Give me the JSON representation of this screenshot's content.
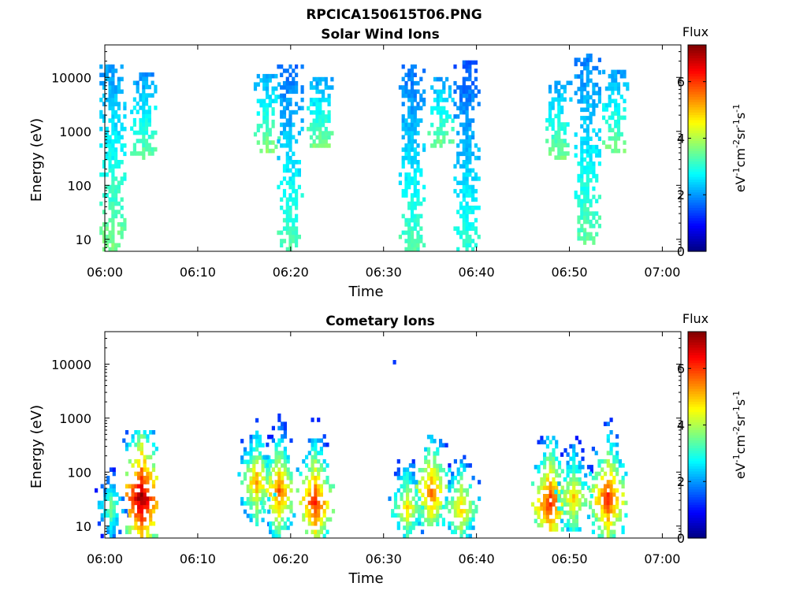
{
  "figure_title": "RPCICA150615T06.PNG",
  "colors": {
    "colormap": "jet",
    "colormap_stops": [
      "#00007f",
      "#0000ff",
      "#007fff",
      "#00ffff",
      "#7fff7f",
      "#ffff00",
      "#ff7f00",
      "#ff0000",
      "#7f0000"
    ]
  },
  "chart_data": [
    {
      "type": "heatmap",
      "title": "Solar Wind Ions",
      "xlabel": "Time",
      "ylabel": "Energy (eV)",
      "y_scale": "log",
      "ylim": [
        6,
        40000
      ],
      "xlim": [
        "06:00",
        "07:02"
      ],
      "x_ticks": [
        "06:00",
        "06:10",
        "06:20",
        "06:30",
        "06:40",
        "06:50",
        "07:00"
      ],
      "y_ticks": [
        "10",
        "100",
        "1000",
        "10000"
      ],
      "colorbar": {
        "label": "Flux",
        "units": "eV-1cm-2sr-1s-1",
        "range": [
          0,
          7.3
        ],
        "ticks": [
          "0",
          "2",
          "4",
          "6"
        ]
      },
      "bursts": [
        {
          "t": 0.7,
          "e_low": 6,
          "e_high": 15000,
          "flux": 2.0
        },
        {
          "t": 4.0,
          "e_low": 300,
          "e_high": 12000,
          "flux": 1.9
        },
        {
          "t": 17.3,
          "e_low": 400,
          "e_high": 10000,
          "flux": 2.1
        },
        {
          "t": 19.8,
          "e_low": 6,
          "e_high": 15000,
          "flux": 1.7
        },
        {
          "t": 23.0,
          "e_low": 500,
          "e_high": 10000,
          "flux": 2.0
        },
        {
          "t": 32.9,
          "e_low": 6,
          "e_high": 15000,
          "flux": 1.7
        },
        {
          "t": 36.0,
          "e_low": 500,
          "e_high": 10000,
          "flux": 2.0
        },
        {
          "t": 38.8,
          "e_low": 6,
          "e_high": 18000,
          "flux": 1.5
        },
        {
          "t": 48.7,
          "e_low": 300,
          "e_high": 8000,
          "flux": 2.0
        },
        {
          "t": 51.8,
          "e_low": 8,
          "e_high": 25000,
          "flux": 1.8
        },
        {
          "t": 54.8,
          "e_low": 400,
          "e_high": 12000,
          "flux": 2.0
        }
      ]
    },
    {
      "type": "heatmap",
      "title": "Cometary Ions",
      "xlabel": "Time",
      "ylabel": "Energy (eV)",
      "y_scale": "log",
      "ylim": [
        6,
        40000
      ],
      "xlim": [
        "06:00",
        "07:02"
      ],
      "x_ticks": [
        "06:00",
        "06:10",
        "06:20",
        "06:30",
        "06:40",
        "06:50",
        "07:00"
      ],
      "y_ticks": [
        "10",
        "100",
        "1000",
        "10000"
      ],
      "colorbar": {
        "label": "Flux",
        "units": "eV-1cm-2sr-1s-1",
        "range": [
          0,
          7.3
        ],
        "ticks": [
          "0",
          "2",
          "4",
          "6"
        ]
      },
      "bursts": [
        {
          "t": 0.5,
          "e_low": 6,
          "e_high": 400,
          "peak_e": 20,
          "peak_flux": 3.8
        },
        {
          "t": 3.8,
          "e_low": 6,
          "e_high": 600,
          "peak_e": 30,
          "peak_flux": 7.2
        },
        {
          "t": 16.2,
          "e_low": 10,
          "e_high": 900,
          "peak_e": 60,
          "peak_flux": 5.3
        },
        {
          "t": 18.6,
          "e_low": 6,
          "e_high": 1300,
          "peak_e": 40,
          "peak_flux": 5.8
        },
        {
          "t": 22.5,
          "e_low": 6,
          "e_high": 1200,
          "peak_e": 25,
          "peak_flux": 6.2
        },
        {
          "t": 31.0,
          "e_low": 10000,
          "e_high": 11000,
          "peak_e": 10500,
          "peak_flux": 1.5
        },
        {
          "t": 32.4,
          "e_low": 6,
          "e_high": 200,
          "peak_e": 20,
          "peak_flux": 4.8
        },
        {
          "t": 35.0,
          "e_low": 10,
          "e_high": 550,
          "peak_e": 40,
          "peak_flux": 5.8
        },
        {
          "t": 38.2,
          "e_low": 6,
          "e_high": 200,
          "peak_e": 20,
          "peak_flux": 5.0
        },
        {
          "t": 47.8,
          "e_low": 8,
          "e_high": 500,
          "peak_e": 25,
          "peak_flux": 6.3
        },
        {
          "t": 50.3,
          "e_low": 8,
          "e_high": 1100,
          "peak_e": 30,
          "peak_flux": 5.0
        },
        {
          "t": 54.0,
          "e_low": 6,
          "e_high": 1300,
          "peak_e": 30,
          "peak_flux": 6.2
        }
      ]
    }
  ]
}
